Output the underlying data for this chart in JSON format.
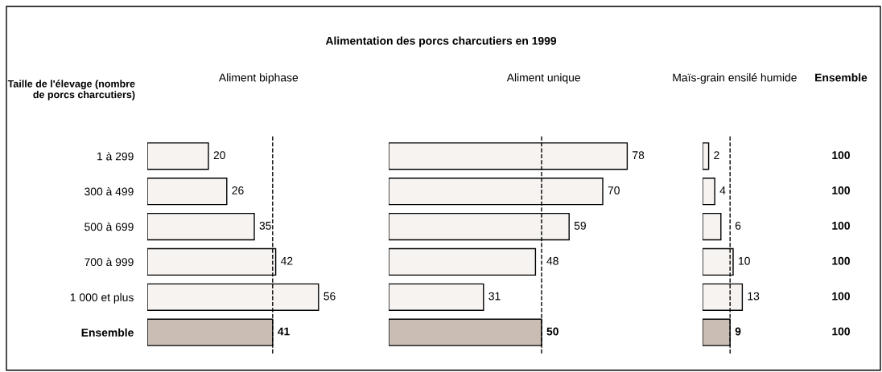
{
  "chart_data": [
    {
      "type": "bar",
      "orientation": "horizontal",
      "title": "Aliment biphase",
      "ylabel": "Taille de l'élevage (nombre de porcs charcutiers)",
      "annotations": [
        "Alimentation des porcs charcutiers en 1999"
      ],
      "categories": [
        "1 à 299",
        "300 à 499",
        "500 à 699",
        "700 à 999",
        "1 000 et plus",
        "Ensemble"
      ],
      "values": [
        20,
        26,
        35,
        42,
        56,
        41
      ],
      "colors": [
        "#f6f3f1",
        "#f6f3f1",
        "#f6f3f1",
        "#f6f3f1",
        "#f6f3f1",
        "#c9bdb4"
      ],
      "data_labels": true,
      "tick_labels": "y",
      "ref_lines": [
        {
          "axis": "x",
          "value": 41,
          "color": "#000000",
          "line_style": "dashed"
        }
      ]
    },
    {
      "type": "bar",
      "orientation": "horizontal",
      "title": "Aliment unique",
      "categories": [
        null,
        null,
        null,
        null,
        null,
        null
      ],
      "values": [
        78,
        70,
        59,
        48,
        31,
        50
      ],
      "colors": [
        "#f6f3f1",
        "#f6f3f1",
        "#f6f3f1",
        "#f6f3f1",
        "#f6f3f1",
        "#c9bdb4"
      ],
      "data_labels": true,
      "tick_labels": false,
      "ref_lines": [
        {
          "axis": "x",
          "value": 50,
          "color": "#000000",
          "line_style": "dashed"
        }
      ]
    },
    {
      "type": "bar",
      "orientation": "horizontal",
      "title": "Maïs-grain ensilé humide",
      "categories": [
        null,
        null,
        null,
        null,
        null,
        null
      ],
      "values": [
        2,
        4,
        6,
        10,
        13,
        9
      ],
      "colors": [
        "#f6f3f1",
        "#f6f3f1",
        "#f6f3f1",
        "#f6f3f1",
        "#f6f3f1",
        "#c9bdb4"
      ],
      "data_labels": true,
      "tick_labels": false,
      "ref_lines": [
        {
          "axis": "x",
          "value": 9,
          "color": "#000000",
          "line_style": "dashed"
        }
      ]
    },
    {
      "type": "other",
      "title": "Ensemble",
      "values": [
        100,
        100,
        100,
        100,
        100,
        100
      ],
      "data_labels": true
    }
  ]
}
